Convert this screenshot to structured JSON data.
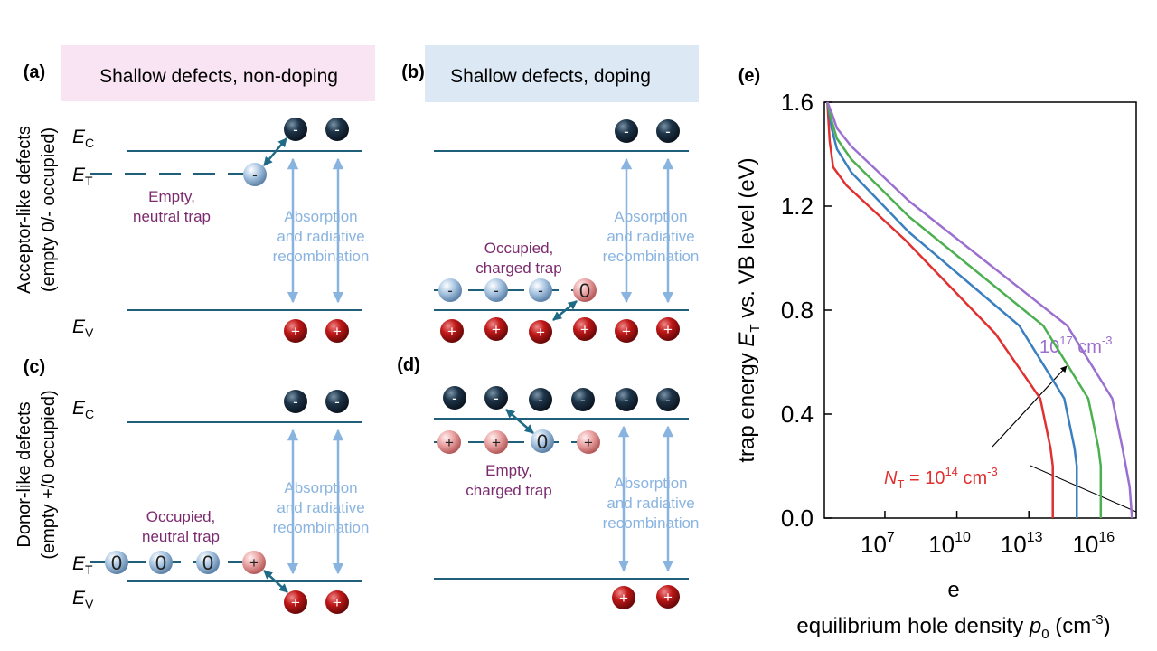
{
  "rows": [
    [
      "Acceptor-like defects",
      "(empty 0/- occupied)"
    ],
    [
      "Donor-like defects",
      "(empty +/0 occupied)"
    ]
  ],
  "charges": {
    "minus": "-",
    "plus": "+",
    "zero": "0"
  },
  "panels": [
    {
      "label": "(a)",
      "header": "Shallow defects, non-doping",
      "levels": [
        [
          "E",
          "C"
        ],
        [
          "E",
          "T"
        ],
        [
          "E",
          "V"
        ]
      ],
      "trap_note": [
        "Empty,",
        "neutral trap"
      ],
      "process": [
        "Absorption",
        "and radiative",
        "recombination"
      ]
    },
    {
      "label": "(b)",
      "header": "Shallow defects, doping",
      "trap_note": [
        "Occupied,",
        "charged trap"
      ],
      "process": [
        "Absorption",
        "and radiative",
        "recombination"
      ]
    },
    {
      "label": "(c)",
      "levels": [
        [
          "E",
          "C"
        ],
        [
          "E",
          "T"
        ],
        [
          "E",
          "V"
        ]
      ],
      "trap_note": [
        "Occupied,",
        "neutral  trap"
      ],
      "process": [
        "Absorption",
        "and radiative",
        "recombination"
      ]
    },
    {
      "label": "(d)",
      "trap_note": [
        "Empty,",
        "charged trap"
      ],
      "process": [
        "Absorption",
        "and radiative",
        "recombination"
      ]
    }
  ],
  "chart_data": {
    "type": "line",
    "label": "(e)",
    "stray_label": "e",
    "xscale": "log",
    "xlabel": [
      "equilibrium hole density ",
      "p",
      "0",
      " (cm",
      "-3",
      ")"
    ],
    "ylabel": [
      "trap energy ",
      "E",
      "T",
      " vs. VB level (eV)"
    ],
    "xlim": [
      30000,
      300000000000000000
    ],
    "ylim": [
      0,
      1.6
    ],
    "xticks": [
      {
        "value": 10000000,
        "label": "10",
        "sup": "7"
      },
      {
        "value": 10000000000,
        "label": "10",
        "sup": "10"
      },
      {
        "value": 10000000000000,
        "label": "10",
        "sup": "13"
      },
      {
        "value": 10000000000000000,
        "label": "10",
        "sup": "16"
      }
    ],
    "yticks": [
      {
        "value": 0,
        "label": "0.0"
      },
      0.4,
      0.8,
      1.2,
      1.6
    ],
    "series": [
      {
        "color": "#e03030",
        "x": [
          40000,
          50000,
          70000,
          250000,
          70000000,
          400000000000,
          30000000000000,
          80000000000000,
          100000000000000,
          100000000000000
        ],
        "values": [
          1.6,
          1.45,
          1.35,
          1.28,
          1.07,
          0.71,
          0.46,
          0.27,
          0.2,
          0
        ]
      },
      {
        "color": "#3a7fc0",
        "x": [
          40000,
          60000,
          100000,
          400000,
          100000000,
          4000000000000,
          300000000000000,
          800000000000000,
          1000000000000000,
          1000000000000000
        ],
        "values": [
          1.6,
          1.5,
          1.42,
          1.33,
          1.1,
          0.74,
          0.46,
          0.27,
          0.2,
          0
        ]
      },
      {
        "color": "#4caf50",
        "x": [
          40000,
          60000,
          100000,
          400000,
          100000000,
          40000000000000,
          3000000000000000,
          8000000000000000,
          10000000000000000,
          10000000000000000
        ],
        "values": [
          1.6,
          1.53,
          1.46,
          1.38,
          1.16,
          0.74,
          0.46,
          0.27,
          0.2,
          0
        ]
      },
      {
        "color": "#9b6fcf",
        "x": [
          40000,
          60000,
          100000,
          400000,
          100000000,
          400000000000000,
          30000000000000000,
          80000000000000000,
          160000000000000000,
          200000000000000000
        ],
        "values": [
          1.6,
          1.56,
          1.5,
          1.43,
          1.22,
          0.74,
          0.46,
          0.27,
          0.12,
          0
        ]
      }
    ],
    "annotations": [
      {
        "parts": [
          "10",
          "17",
          " cm",
          "-3"
        ],
        "color": "#9b6fcf"
      },
      {
        "parts": [
          "N",
          "T",
          " = 10",
          "14",
          " cm",
          "-3"
        ],
        "color": "#e03030"
      }
    ]
  }
}
